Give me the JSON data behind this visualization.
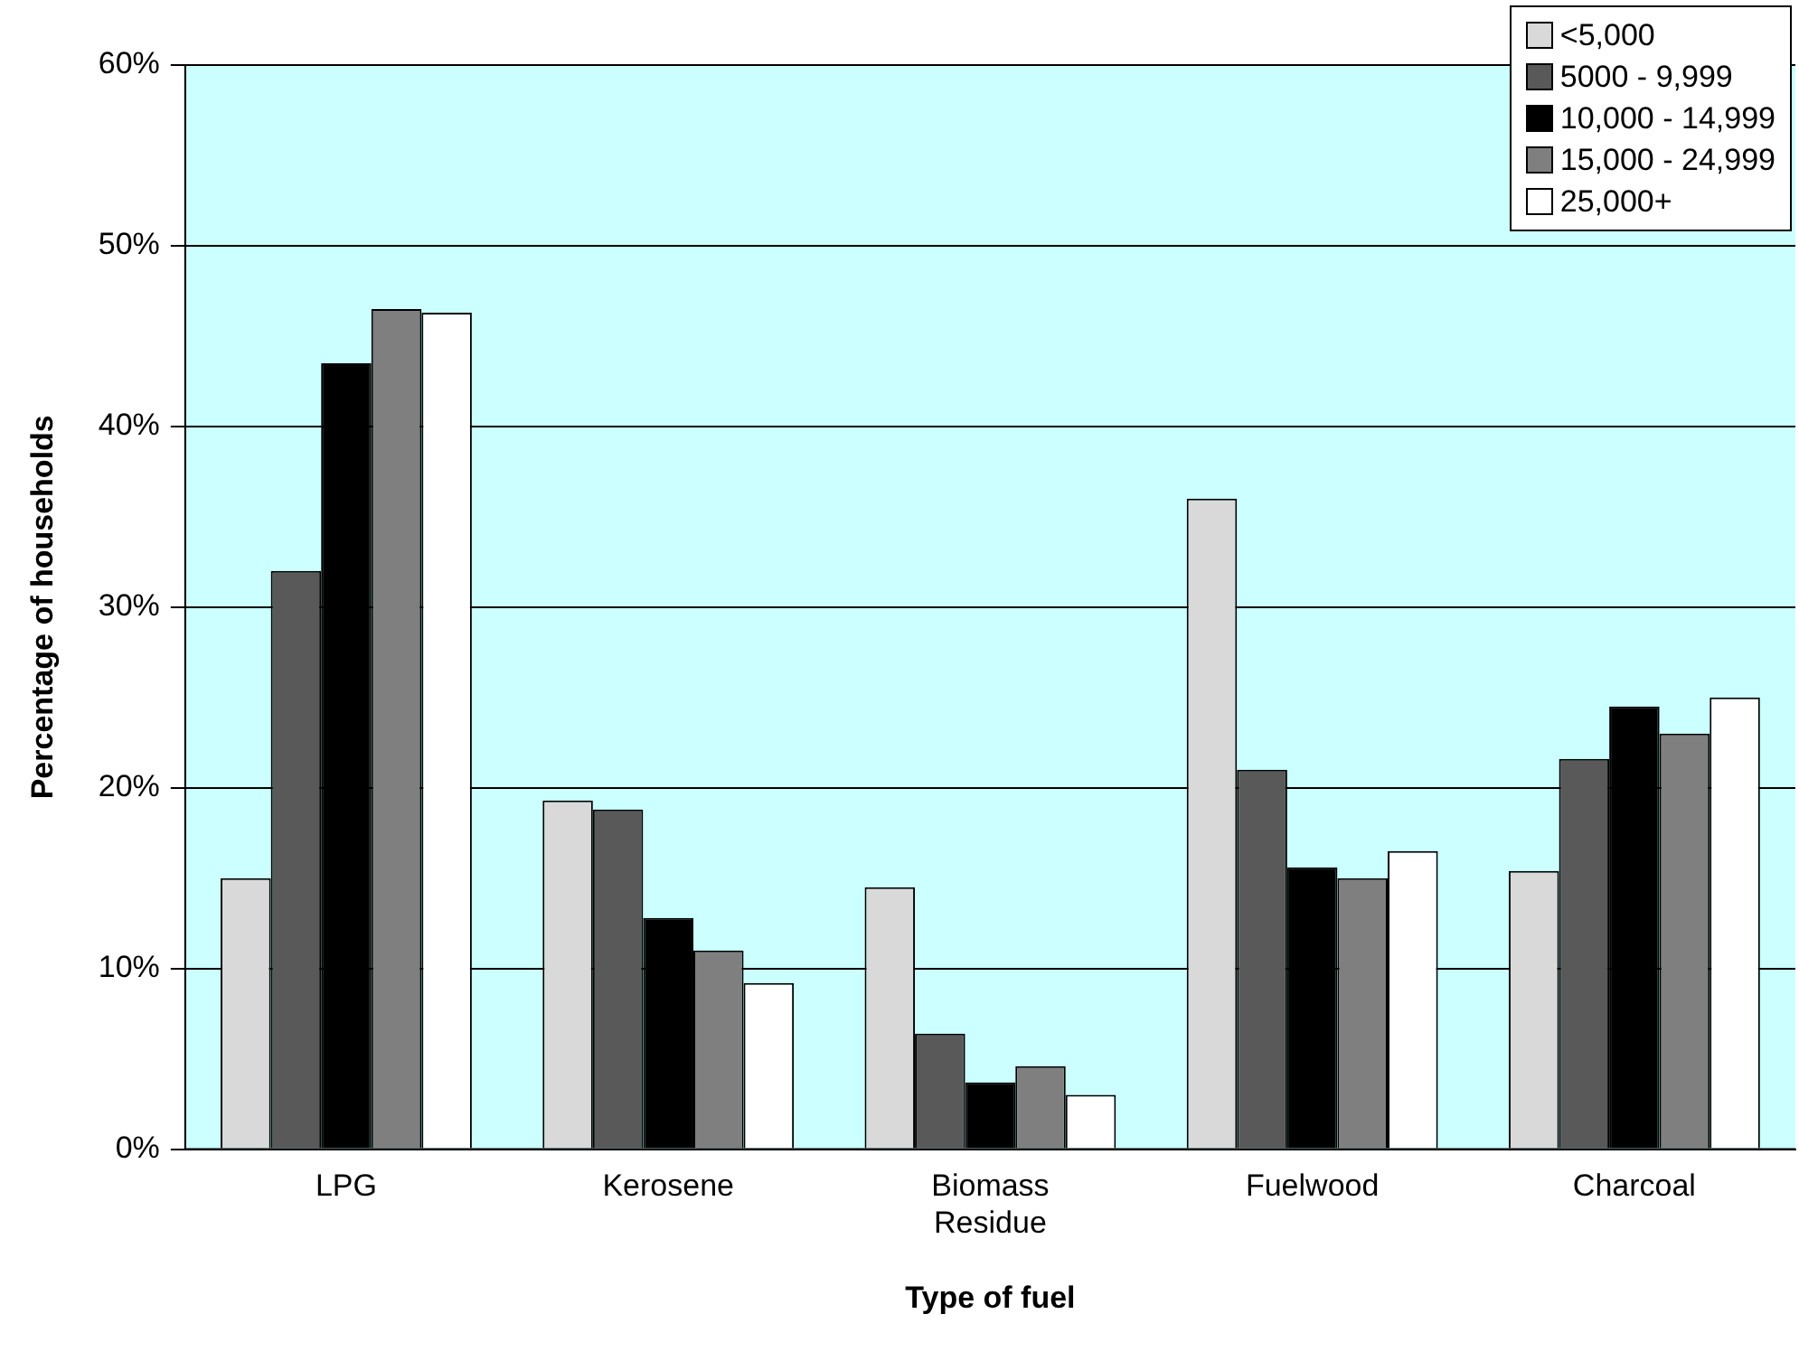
{
  "chart_data": {
    "type": "bar",
    "xlabel": "Type of fuel",
    "ylabel": "Percentage of households",
    "categories": [
      "LPG",
      "Kerosene",
      "Biomass Residue",
      "Fuelwood",
      "Charcoal"
    ],
    "series": [
      {
        "name": "<5,000",
        "color": "#d9d9d9",
        "values": [
          15,
          19.3,
          14.5,
          36,
          15.4
        ]
      },
      {
        "name": "5000 - 9,999",
        "color": "#595959",
        "values": [
          32,
          18.8,
          6.4,
          21,
          21.6
        ]
      },
      {
        "name": "10,000 - 14,999",
        "color": "#000000",
        "values": [
          43.5,
          12.8,
          3.7,
          15.6,
          24.5
        ]
      },
      {
        "name": "15,000 - 24,999",
        "color": "#7f7f7f",
        "values": [
          46.5,
          11,
          4.6,
          15,
          23
        ]
      },
      {
        "name": "25,000+",
        "color": "#ffffff",
        "values": [
          46.3,
          9.2,
          3,
          16.5,
          25
        ]
      }
    ],
    "ylim": [
      0,
      60
    ],
    "yticks": [
      {
        "value": 0,
        "label": "0%"
      },
      {
        "value": 10,
        "label": "10%"
      },
      {
        "value": 20,
        "label": "20%"
      },
      {
        "value": 30,
        "label": "30%"
      },
      {
        "value": 40,
        "label": "40%"
      },
      {
        "value": 50,
        "label": "50%"
      },
      {
        "value": 60,
        "label": "60%"
      }
    ],
    "grid": "y",
    "legend": "top right"
  }
}
